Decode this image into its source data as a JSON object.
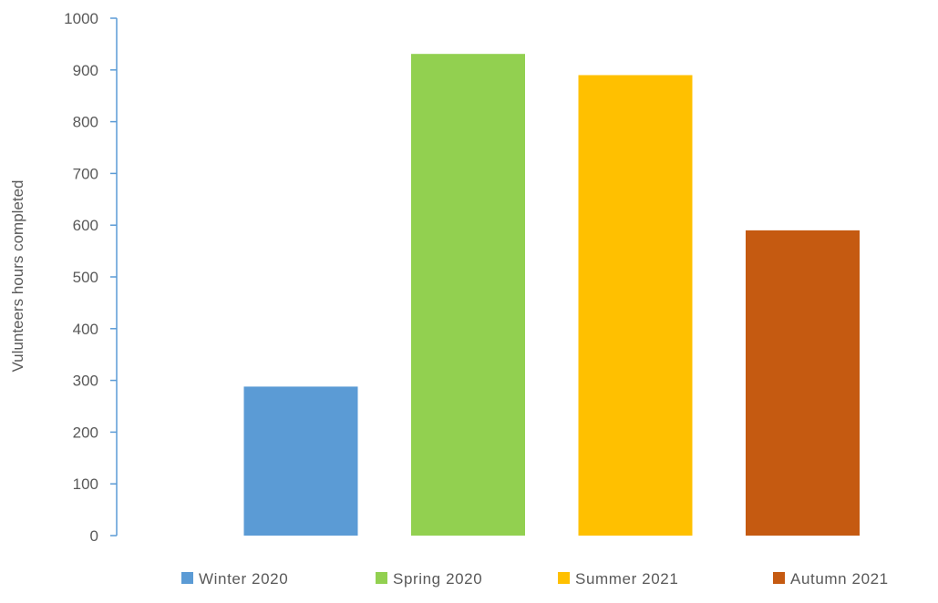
{
  "chart_data": {
    "type": "bar",
    "categories": [
      "Winter 2020",
      "Spring 2020",
      "Summer 2021",
      "Autumn 2021"
    ],
    "values": [
      288,
      931,
      890,
      590
    ],
    "colors": [
      "#5b9bd5",
      "#92d050",
      "#ffc000",
      "#c55a11"
    ],
    "axis_color": "#5b9bd5",
    "title": "",
    "xlabel": "",
    "ylabel": "Vulunteers hours completed",
    "ylim": [
      0,
      1000
    ],
    "yticks": [
      0,
      100,
      200,
      300,
      400,
      500,
      600,
      700,
      800,
      900,
      1000
    ],
    "ytick_labels": [
      "0",
      "100",
      "200",
      "300",
      "400",
      "500",
      "600",
      "700",
      "800",
      "900",
      "1000"
    ],
    "grid": false,
    "legend_position": "bottom",
    "legend": [
      "Winter 2020",
      "Spring 2020",
      "Summer 2021",
      "Autumn 2021"
    ]
  }
}
